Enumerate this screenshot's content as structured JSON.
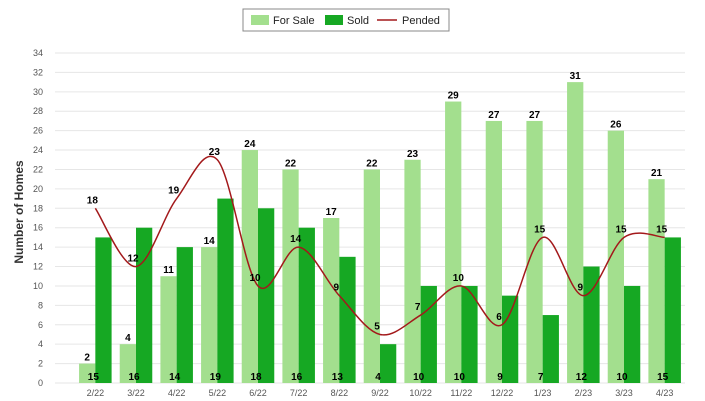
{
  "chart_data": {
    "type": "bar",
    "title": "",
    "xlabel": "",
    "ylabel": "Number of Homes",
    "ylim": [
      0,
      34
    ],
    "ytick_step": 2,
    "grid": true,
    "legend_position": "top-center",
    "categories": [
      "2/22",
      "3/22",
      "4/22",
      "5/22",
      "6/22",
      "7/22",
      "8/22",
      "9/22",
      "10/22",
      "11/22",
      "12/22",
      "1/23",
      "2/23",
      "3/23",
      "4/23"
    ],
    "series": [
      {
        "name": "For Sale",
        "kind": "bar",
        "color": "#a3df8e",
        "values": [
          2,
          4,
          11,
          14,
          24,
          22,
          17,
          22,
          23,
          29,
          27,
          27,
          31,
          26,
          21
        ]
      },
      {
        "name": "Sold",
        "kind": "bar",
        "color": "#16a823",
        "values": [
          15,
          16,
          14,
          19,
          18,
          16,
          13,
          4,
          10,
          10,
          9,
          7,
          12,
          10,
          15
        ]
      },
      {
        "name": "Pended",
        "kind": "line",
        "color": "#a3191b",
        "values": [
          18,
          12,
          19,
          23,
          10,
          14,
          9,
          5,
          7,
          10,
          6,
          15,
          9,
          15,
          15
        ]
      }
    ]
  }
}
